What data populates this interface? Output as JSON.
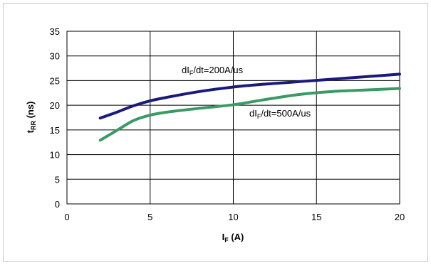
{
  "chart_data": {
    "type": "line",
    "title": "",
    "xlabel": {
      "main": "I",
      "sub": "F",
      "suffix": " (A)"
    },
    "ylabel": {
      "main": "t",
      "sub": "RR",
      "suffix": " (ns)"
    },
    "xlim": [
      0,
      20
    ],
    "ylim": [
      0,
      35
    ],
    "xticks": [
      0,
      5,
      10,
      15,
      20
    ],
    "yticks": [
      0,
      5,
      10,
      15,
      20,
      25,
      30,
      35
    ],
    "grid": true,
    "series": [
      {
        "label": {
          "prefix": "dI",
          "sub": "F",
          "suffix": "/dt=200A/us"
        },
        "color": "#1a1a7a",
        "x": [
          2,
          3,
          4,
          5,
          6,
          8,
          10,
          12,
          14,
          16,
          18,
          20
        ],
        "y": [
          17.4,
          18.6,
          19.9,
          20.9,
          21.6,
          22.8,
          23.7,
          24.3,
          24.8,
          25.3,
          25.8,
          26.3
        ]
      },
      {
        "label": {
          "prefix": "dI",
          "sub": "F",
          "suffix": "/dt=500A/us"
        },
        "color": "#3a9a66",
        "x": [
          2,
          3,
          4,
          5,
          6,
          8,
          10,
          12,
          14,
          16,
          18,
          20
        ],
        "y": [
          12.9,
          14.9,
          16.9,
          18.0,
          18.6,
          19.4,
          20.1,
          21.2,
          22.2,
          22.8,
          23.1,
          23.4
        ]
      }
    ]
  }
}
